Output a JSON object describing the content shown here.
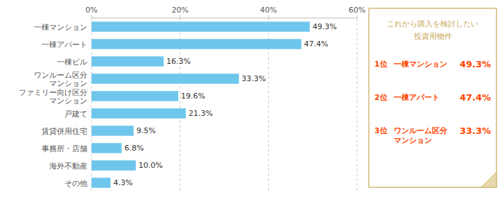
{
  "chart_data": {
    "type": "bar",
    "orientation": "horizontal",
    "categories": [
      "一棟マンション",
      "一棟アパート",
      "一棟ビル",
      "ワンルーム区分\nマンション",
      "ファミリー向け区分\nマンション",
      "戸建て",
      "賃貸併用住宅",
      "事務所・店舗",
      "海外不動産",
      "その他"
    ],
    "values": [
      49.3,
      47.4,
      16.3,
      33.3,
      19.6,
      21.3,
      9.5,
      6.8,
      10.0,
      4.3
    ],
    "value_labels": [
      "49.3%",
      "47.4%",
      "16.3%",
      "33.3%",
      "19.6%",
      "21.3%",
      "9.5%",
      "6.8%",
      "10.0%",
      "4.3%"
    ],
    "data_labels": true,
    "color": "#6EC6EC",
    "xlim": [
      0,
      60
    ],
    "xticks": [
      {
        "value": 0,
        "label": "0%"
      },
      {
        "value": 20,
        "label": "20%"
      },
      {
        "value": 40,
        "label": "40%"
      },
      {
        "value": 60,
        "label": "60%"
      }
    ],
    "grid": true,
    "annotations": [
      "これから購入を検討したい",
      "投資用物件",
      "1位",
      "一棟マンション",
      "49.3%",
      "2位",
      "一棟アパート",
      "47.4%",
      "3位",
      "ワンルーム区分\nマンション",
      "33.3%"
    ]
  }
}
